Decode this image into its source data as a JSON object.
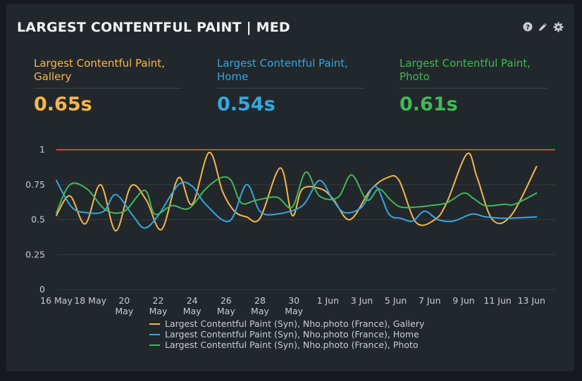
{
  "panel": {
    "title": "LARGEST CONTENTFUL PAINT | MED",
    "icons": [
      "help-icon",
      "edit-icon",
      "gear-icon"
    ]
  },
  "stats": [
    {
      "label": "Largest Contentful Paint, Gallery",
      "value": "0.65s",
      "color": "#f5b74e"
    },
    {
      "label": "Largest Contentful Paint, Home",
      "value": "0.54s",
      "color": "#35a8e0"
    },
    {
      "label": "Largest Contentful Paint, Photo",
      "value": "0.61s",
      "color": "#3fba57"
    }
  ],
  "chart_data": {
    "type": "line",
    "title": "",
    "xlabel": "",
    "ylabel": "",
    "ylim": [
      0,
      1
    ],
    "yticks": [
      "0",
      "0.25",
      "0.5",
      "0.75",
      "1"
    ],
    "xticks": [
      {
        "x": 0,
        "label": [
          "16 May"
        ]
      },
      {
        "x": 2,
        "label": [
          "18 May"
        ]
      },
      {
        "x": 4,
        "label": [
          "20",
          "May"
        ]
      },
      {
        "x": 6,
        "label": [
          "22",
          "May"
        ]
      },
      {
        "x": 8,
        "label": [
          "24",
          "May"
        ]
      },
      {
        "x": 10,
        "label": [
          "26",
          "May"
        ]
      },
      {
        "x": 12,
        "label": [
          "28",
          "May"
        ]
      },
      {
        "x": 14,
        "label": [
          "30",
          "May"
        ]
      },
      {
        "x": 16,
        "label": [
          "1 Jun"
        ]
      },
      {
        "x": 18,
        "label": [
          "3 Jun"
        ]
      },
      {
        "x": 20,
        "label": [
          "5 Jun"
        ]
      },
      {
        "x": 22,
        "label": [
          "7 Jun"
        ]
      },
      {
        "x": 24,
        "label": [
          "9 Jun"
        ]
      },
      {
        "x": 26,
        "label": [
          "11 Jun"
        ]
      },
      {
        "x": 28,
        "label": [
          "13 Jun"
        ]
      }
    ],
    "xrange": [
      0,
      29.4
    ],
    "threshold": {
      "value": 1,
      "color": "#d9423a"
    },
    "grid": true,
    "series": [
      {
        "name": "Largest Contentful Paint (Syn), Nho.photo (France), Gallery",
        "color": "#f5b74e",
        "points": [
          [
            0,
            0.53
          ],
          [
            0.8,
            0.67
          ],
          [
            1.7,
            0.47
          ],
          [
            2.6,
            0.75
          ],
          [
            3.5,
            0.42
          ],
          [
            4.4,
            0.74
          ],
          [
            5.3,
            0.64
          ],
          [
            6.2,
            0.43
          ],
          [
            7.2,
            0.8
          ],
          [
            8.0,
            0.61
          ],
          [
            9.0,
            0.98
          ],
          [
            9.8,
            0.7
          ],
          [
            10.5,
            0.56
          ],
          [
            11.2,
            0.52
          ],
          [
            12.0,
            0.51
          ],
          [
            13.2,
            0.87
          ],
          [
            13.9,
            0.53
          ],
          [
            14.5,
            0.72
          ],
          [
            15.6,
            0.72
          ],
          [
            16.3,
            0.65
          ],
          [
            17.3,
            0.5
          ],
          [
            18.5,
            0.71
          ],
          [
            19.5,
            0.8
          ],
          [
            20.2,
            0.78
          ],
          [
            21.2,
            0.48
          ],
          [
            22.3,
            0.5
          ],
          [
            23.0,
            0.62
          ],
          [
            24.2,
            0.97
          ],
          [
            24.8,
            0.8
          ],
          [
            25.7,
            0.5
          ],
          [
            26.8,
            0.53
          ],
          [
            28.3,
            0.88
          ]
        ]
      },
      {
        "name": "Largest Contentful Paint (Syn), Nho.photo (France), Home",
        "color": "#35a8e0",
        "points": [
          [
            0,
            0.78
          ],
          [
            0.9,
            0.59
          ],
          [
            1.8,
            0.55
          ],
          [
            2.8,
            0.56
          ],
          [
            3.5,
            0.68
          ],
          [
            4.5,
            0.53
          ],
          [
            5.2,
            0.44
          ],
          [
            6.0,
            0.53
          ],
          [
            7.2,
            0.75
          ],
          [
            8.0,
            0.74
          ],
          [
            8.8,
            0.61
          ],
          [
            10.2,
            0.49
          ],
          [
            11.2,
            0.75
          ],
          [
            12.0,
            0.56
          ],
          [
            13.0,
            0.54
          ],
          [
            14.5,
            0.6
          ],
          [
            15.5,
            0.78
          ],
          [
            16.3,
            0.64
          ],
          [
            17.0,
            0.55
          ],
          [
            18.0,
            0.59
          ],
          [
            18.8,
            0.74
          ],
          [
            19.6,
            0.54
          ],
          [
            20.3,
            0.51
          ],
          [
            21.0,
            0.49
          ],
          [
            21.7,
            0.56
          ],
          [
            22.5,
            0.5
          ],
          [
            23.4,
            0.49
          ],
          [
            24.5,
            0.54
          ],
          [
            25.3,
            0.52
          ],
          [
            26.5,
            0.51
          ],
          [
            28.3,
            0.52
          ]
        ]
      },
      {
        "name": "Largest Contentful Paint (Syn), Nho.photo (France), Photo",
        "color": "#3fba57",
        "points": [
          [
            0,
            0.55
          ],
          [
            0.8,
            0.75
          ],
          [
            1.8,
            0.72
          ],
          [
            2.9,
            0.57
          ],
          [
            4.0,
            0.56
          ],
          [
            5.2,
            0.71
          ],
          [
            5.8,
            0.54
          ],
          [
            6.8,
            0.6
          ],
          [
            7.8,
            0.58
          ],
          [
            8.8,
            0.72
          ],
          [
            9.7,
            0.8
          ],
          [
            10.3,
            0.78
          ],
          [
            10.9,
            0.62
          ],
          [
            11.8,
            0.64
          ],
          [
            13.0,
            0.66
          ],
          [
            13.9,
            0.59
          ],
          [
            14.7,
            0.84
          ],
          [
            15.5,
            0.67
          ],
          [
            16.6,
            0.66
          ],
          [
            17.4,
            0.82
          ],
          [
            18.3,
            0.64
          ],
          [
            19.0,
            0.72
          ],
          [
            19.7,
            0.64
          ],
          [
            20.3,
            0.59
          ],
          [
            21.2,
            0.59
          ],
          [
            22.0,
            0.6
          ],
          [
            23.0,
            0.62
          ],
          [
            24.0,
            0.69
          ],
          [
            24.6,
            0.65
          ],
          [
            25.3,
            0.6
          ],
          [
            26.4,
            0.61
          ],
          [
            27.0,
            0.61
          ],
          [
            28.3,
            0.69
          ]
        ]
      }
    ],
    "legend_position": "bottom-center"
  }
}
